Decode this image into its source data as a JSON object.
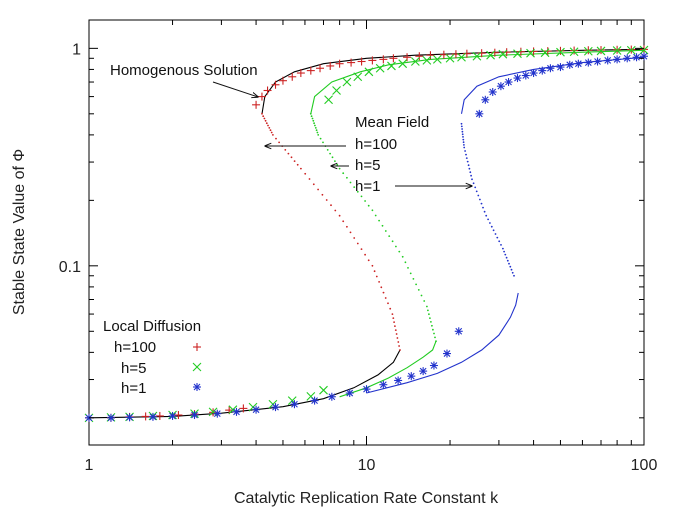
{
  "chart_data": {
    "type": "scatter",
    "xlabel": "Catalytic Replication Rate Constant k",
    "ylabel": "Stable State Value of Φ",
    "xscale": "log",
    "yscale": "log",
    "xlim": [
      1,
      100
    ],
    "ylim": [
      0.015,
      1.35
    ],
    "xticks": [
      {
        "value": 1,
        "label": "1"
      },
      {
        "value": 10,
        "label": "10"
      },
      {
        "value": 100,
        "label": "100"
      }
    ],
    "yticks": [
      {
        "value": 0.1,
        "label": "0.1"
      },
      {
        "value": 1,
        "label": "1"
      }
    ],
    "mean_field_curves": [
      {
        "name": "h=100",
        "color": "#000000",
        "dotted_color": "#cc2222",
        "lower": [
          [
            1,
            0.02
          ],
          [
            2,
            0.0203
          ],
          [
            3,
            0.021
          ],
          [
            5,
            0.0225
          ],
          [
            7,
            0.0245
          ],
          [
            9,
            0.0275
          ],
          [
            11,
            0.0315
          ],
          [
            12.5,
            0.036
          ],
          [
            13.2,
            0.041
          ]
        ],
        "middle": [
          [
            13.2,
            0.041
          ],
          [
            12.4,
            0.06
          ],
          [
            10.5,
            0.1
          ],
          [
            8,
            0.17
          ],
          [
            5.8,
            0.28
          ],
          [
            4.6,
            0.4
          ],
          [
            4.2,
            0.5
          ]
        ],
        "upper": [
          [
            4.2,
            0.5
          ],
          [
            4.3,
            0.6
          ],
          [
            4.7,
            0.7
          ],
          [
            5.5,
            0.78
          ],
          [
            7,
            0.85
          ],
          [
            10,
            0.9
          ],
          [
            15,
            0.93
          ],
          [
            30,
            0.96
          ],
          [
            60,
            0.98
          ],
          [
            100,
            0.99
          ]
        ]
      },
      {
        "name": "h=5",
        "color": "#22cc22",
        "dotted_color": "#22cc22",
        "lower": [
          [
            8,
            0.025
          ],
          [
            10,
            0.0275
          ],
          [
            12,
            0.0305
          ],
          [
            14,
            0.034
          ],
          [
            16,
            0.038
          ],
          [
            17.3,
            0.041
          ],
          [
            17.8,
            0.045
          ]
        ],
        "middle": [
          [
            17.8,
            0.045
          ],
          [
            16.5,
            0.065
          ],
          [
            13.5,
            0.11
          ],
          [
            10.5,
            0.18
          ],
          [
            8,
            0.28
          ],
          [
            6.7,
            0.4
          ],
          [
            6.3,
            0.5
          ]
        ],
        "upper": [
          [
            6.3,
            0.5
          ],
          [
            6.5,
            0.6
          ],
          [
            7.5,
            0.7
          ],
          [
            9.5,
            0.78
          ],
          [
            12,
            0.84
          ],
          [
            17,
            0.89
          ],
          [
            30,
            0.93
          ],
          [
            60,
            0.96
          ],
          [
            100,
            0.98
          ]
        ]
      },
      {
        "name": "h=1",
        "color": "#2233cc",
        "dotted_color": "#2233cc",
        "lower": [
          [
            10,
            0.026
          ],
          [
            14,
            0.029
          ],
          [
            18,
            0.032
          ],
          [
            22,
            0.036
          ],
          [
            26,
            0.041
          ],
          [
            30,
            0.048
          ],
          [
            33,
            0.058
          ],
          [
            34.5,
            0.066
          ],
          [
            35.2,
            0.075
          ]
        ],
        "middle": [
          [
            34,
            0.09
          ],
          [
            31,
            0.12
          ],
          [
            27,
            0.17
          ],
          [
            24,
            0.25
          ],
          [
            22.5,
            0.35
          ],
          [
            22,
            0.45
          ]
        ],
        "upper": [
          [
            22,
            0.5
          ],
          [
            22.5,
            0.58
          ],
          [
            25,
            0.67
          ],
          [
            30,
            0.74
          ],
          [
            40,
            0.8
          ],
          [
            60,
            0.86
          ],
          [
            100,
            0.91
          ]
        ]
      }
    ],
    "local_diffusion": [
      {
        "name": "h=100",
        "marker": "+",
        "color": "#cc2222",
        "points": [
          [
            1,
            0.02
          ],
          [
            1.2,
            0.02
          ],
          [
            1.4,
            0.0202
          ],
          [
            1.6,
            0.0203
          ],
          [
            1.8,
            0.0204
          ],
          [
            2.1,
            0.0206
          ],
          [
            2.4,
            0.0208
          ],
          [
            2.8,
            0.0212
          ],
          [
            3.2,
            0.0217
          ],
          [
            3.6,
            0.0221
          ],
          [
            4.0,
            0.55
          ],
          [
            4.2,
            0.6
          ],
          [
            4.4,
            0.64
          ],
          [
            4.7,
            0.68
          ],
          [
            5,
            0.71
          ],
          [
            5.4,
            0.74
          ],
          [
            5.8,
            0.77
          ],
          [
            6.3,
            0.79
          ],
          [
            6.8,
            0.81
          ],
          [
            7.4,
            0.83
          ],
          [
            8,
            0.85
          ],
          [
            8.8,
            0.86
          ],
          [
            9.6,
            0.87
          ],
          [
            10.5,
            0.88
          ],
          [
            11.5,
            0.89
          ],
          [
            12.5,
            0.9
          ],
          [
            14,
            0.91
          ],
          [
            15.5,
            0.92
          ],
          [
            17,
            0.93
          ],
          [
            19,
            0.935
          ],
          [
            21,
            0.94
          ],
          [
            23,
            0.945
          ],
          [
            26,
            0.95
          ],
          [
            29,
            0.955
          ],
          [
            32,
            0.96
          ],
          [
            36,
            0.965
          ],
          [
            40,
            0.968
          ],
          [
            45,
            0.971
          ],
          [
            50,
            0.974
          ],
          [
            56,
            0.977
          ],
          [
            63,
            0.98
          ],
          [
            70,
            0.982
          ],
          [
            80,
            0.985
          ],
          [
            90,
            0.987
          ],
          [
            100,
            0.989
          ]
        ]
      },
      {
        "name": "h=5",
        "marker": "×",
        "color": "#22cc22",
        "points": [
          [
            1,
            0.02
          ],
          [
            1.2,
            0.0201
          ],
          [
            1.4,
            0.0202
          ],
          [
            1.7,
            0.0204
          ],
          [
            2,
            0.0206
          ],
          [
            2.4,
            0.0209
          ],
          [
            2.8,
            0.0213
          ],
          [
            3.3,
            0.0218
          ],
          [
            3.9,
            0.0224
          ],
          [
            4.6,
            0.0231
          ],
          [
            5.4,
            0.024
          ],
          [
            6.3,
            0.0251
          ],
          [
            7.0,
            0.0268
          ],
          [
            7.3,
            0.58
          ],
          [
            7.8,
            0.64
          ],
          [
            8.5,
            0.7
          ],
          [
            9.3,
            0.74
          ],
          [
            10.2,
            0.78
          ],
          [
            11.2,
            0.81
          ],
          [
            12.3,
            0.83
          ],
          [
            13.5,
            0.85
          ],
          [
            15,
            0.87
          ],
          [
            16.5,
            0.88
          ],
          [
            18,
            0.89
          ],
          [
            20,
            0.9
          ],
          [
            22,
            0.91
          ],
          [
            25,
            0.92
          ],
          [
            28,
            0.93
          ],
          [
            31,
            0.94
          ],
          [
            35,
            0.945
          ],
          [
            39,
            0.95
          ],
          [
            44,
            0.955
          ],
          [
            50,
            0.96
          ],
          [
            56,
            0.965
          ],
          [
            63,
            0.97
          ],
          [
            70,
            0.973
          ],
          [
            80,
            0.977
          ],
          [
            90,
            0.98
          ],
          [
            100,
            0.982
          ]
        ]
      },
      {
        "name": "h=1",
        "marker": "*",
        "color": "#2233cc",
        "points": [
          [
            1,
            0.02
          ],
          [
            1.2,
            0.02
          ],
          [
            1.4,
            0.0201
          ],
          [
            1.7,
            0.0202
          ],
          [
            2,
            0.0204
          ],
          [
            2.4,
            0.0206
          ],
          [
            2.9,
            0.0209
          ],
          [
            3.4,
            0.0213
          ],
          [
            4,
            0.0218
          ],
          [
            4.7,
            0.0224
          ],
          [
            5.5,
            0.0231
          ],
          [
            6.5,
            0.024
          ],
          [
            7.5,
            0.025
          ],
          [
            8.7,
            0.026
          ],
          [
            10,
            0.0271
          ],
          [
            11.5,
            0.0284
          ],
          [
            13,
            0.0297
          ],
          [
            14.5,
            0.0311
          ],
          [
            16,
            0.0328
          ],
          [
            17.5,
            0.0348
          ],
          [
            19.5,
            0.0395
          ],
          [
            21.5,
            0.05
          ],
          [
            25.5,
            0.5
          ],
          [
            26.8,
            0.58
          ],
          [
            28.5,
            0.63
          ],
          [
            30.5,
            0.67
          ],
          [
            32.5,
            0.7
          ],
          [
            35,
            0.73
          ],
          [
            37.5,
            0.75
          ],
          [
            40,
            0.77
          ],
          [
            43,
            0.79
          ],
          [
            46,
            0.81
          ],
          [
            50,
            0.82
          ],
          [
            54,
            0.84
          ],
          [
            58,
            0.85
          ],
          [
            63,
            0.86
          ],
          [
            68,
            0.87
          ],
          [
            74,
            0.88
          ],
          [
            80,
            0.89
          ],
          [
            87,
            0.9
          ],
          [
            94,
            0.91
          ],
          [
            100,
            0.92
          ]
        ]
      }
    ],
    "annotations": [
      {
        "text": "Homogenous Solution"
      },
      {
        "text": "Mean Field"
      },
      {
        "text": "h=100"
      },
      {
        "text": "h=5"
      },
      {
        "text": "h=1"
      }
    ],
    "legend": {
      "title": "Local Diffusion",
      "placement": "bottom-left",
      "entries": [
        {
          "label": "h=100",
          "marker": "+",
          "color": "#cc2222"
        },
        {
          "label": "h=5",
          "marker": "×",
          "color": "#22cc22"
        },
        {
          "label": "h=1",
          "marker": "*",
          "color": "#2233cc"
        }
      ]
    },
    "grid": false
  }
}
